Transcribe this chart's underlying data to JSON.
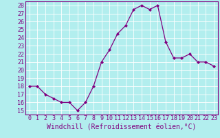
{
  "x": [
    0,
    1,
    2,
    3,
    4,
    5,
    6,
    7,
    8,
    9,
    10,
    11,
    12,
    13,
    14,
    15,
    16,
    17,
    18,
    19,
    20,
    21,
    22,
    23
  ],
  "y": [
    18,
    18,
    17,
    16.5,
    16,
    16,
    15,
    16,
    18,
    21,
    22.5,
    24.5,
    25.5,
    27.5,
    28,
    27.5,
    28,
    23.5,
    21.5,
    21.5,
    22,
    21,
    21,
    20.5
  ],
  "line_color": "#800080",
  "marker": "D",
  "marker_size": 2,
  "background_color": "#b2eeee",
  "grid_color": "#ffffff",
  "xlabel": "Windchill (Refroidissement éolien,°C)",
  "xlim": [
    -0.5,
    23.5
  ],
  "ylim": [
    14.5,
    28.5
  ],
  "xticks": [
    0,
    1,
    2,
    3,
    4,
    5,
    6,
    7,
    8,
    9,
    10,
    11,
    12,
    13,
    14,
    15,
    16,
    17,
    18,
    19,
    20,
    21,
    22,
    23
  ],
  "yticks": [
    15,
    16,
    17,
    18,
    19,
    20,
    21,
    22,
    23,
    24,
    25,
    26,
    27,
    28
  ],
  "xlabel_fontsize": 7,
  "tick_fontsize": 6,
  "tick_color": "#800080",
  "label_color": "#800080",
  "spine_color": "#800080",
  "linewidth": 0.9
}
